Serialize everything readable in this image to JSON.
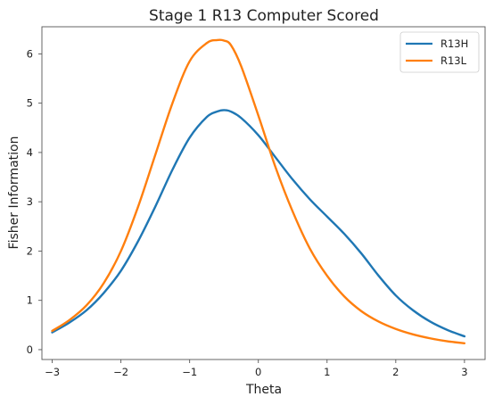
{
  "chart_data": {
    "type": "line",
    "title": "Stage 1 R13 Computer Scored",
    "xlabel": "Theta",
    "ylabel": "Fisher Information",
    "xlim": [
      -3.15,
      3.3
    ],
    "ylim": [
      -0.2,
      6.55
    ],
    "xticks": [
      -3,
      -2,
      -1,
      0,
      1,
      2,
      3
    ],
    "xtick_labels": [
      "−3",
      "−2",
      "−1",
      "0",
      "1",
      "2",
      "3"
    ],
    "yticks": [
      0,
      1,
      2,
      3,
      4,
      5,
      6
    ],
    "ytick_labels": [
      "0",
      "1",
      "2",
      "3",
      "4",
      "5",
      "6"
    ],
    "grid": false,
    "legend_position": "top-right",
    "x": [
      -3.0,
      -2.75,
      -2.5,
      -2.25,
      -2.0,
      -1.75,
      -1.5,
      -1.25,
      -1.0,
      -0.75,
      -0.6,
      -0.5,
      -0.4,
      -0.25,
      0.0,
      0.25,
      0.5,
      0.75,
      1.0,
      1.25,
      1.5,
      1.75,
      2.0,
      2.25,
      2.5,
      2.75,
      3.0
    ],
    "series": [
      {
        "name": "R13H",
        "color": "#1f77b4",
        "values": [
          0.35,
          0.55,
          0.8,
          1.15,
          1.6,
          2.2,
          2.9,
          3.65,
          4.3,
          4.72,
          4.83,
          4.86,
          4.83,
          4.7,
          4.35,
          3.9,
          3.45,
          3.05,
          2.7,
          2.35,
          1.95,
          1.5,
          1.1,
          0.8,
          0.57,
          0.4,
          0.27
        ]
      },
      {
        "name": "R13L",
        "color": "#ff7f0e",
        "values": [
          0.38,
          0.6,
          0.9,
          1.35,
          2.0,
          2.9,
          3.95,
          5.0,
          5.85,
          6.22,
          6.28,
          6.27,
          6.18,
          5.75,
          4.75,
          3.7,
          2.8,
          2.05,
          1.5,
          1.08,
          0.78,
          0.57,
          0.42,
          0.31,
          0.23,
          0.17,
          0.13
        ]
      }
    ]
  }
}
